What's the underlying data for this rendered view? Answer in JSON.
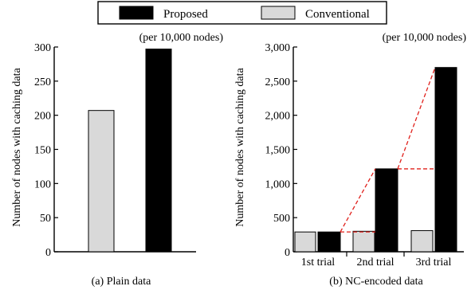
{
  "legend": {
    "items": [
      {
        "label": "Proposed",
        "color": "#000000"
      },
      {
        "label": "Conventional",
        "color": "#d9d9d9"
      }
    ]
  },
  "chart_data": [
    {
      "type": "bar",
      "title": "(a) Plain data",
      "subtitle": "(per 10,000 nodes)",
      "ylabel": "Number of nodes with caching data",
      "xlabel": "",
      "ylim": [
        0,
        300
      ],
      "yticks": [
        0,
        50,
        100,
        150,
        200,
        250,
        300
      ],
      "ytick_labels": [
        "0",
        "50",
        "100",
        "150",
        "200",
        "250",
        "300"
      ],
      "categories": [
        ""
      ],
      "series": [
        {
          "name": "Conventional",
          "color": "#d9d9d9",
          "values": [
            207
          ]
        },
        {
          "name": "Proposed",
          "color": "#000000",
          "values": [
            297
          ]
        }
      ],
      "grid": false
    },
    {
      "type": "bar",
      "title": "(b) NC-encoded data",
      "subtitle": "(per 10,000 nodes)",
      "ylabel": "Number of nodes with caching data",
      "xlabel": "",
      "ylim": [
        0,
        3000
      ],
      "yticks": [
        0,
        500,
        1000,
        1500,
        2000,
        2500,
        3000
      ],
      "ytick_labels": [
        "0",
        "500",
        "1,000",
        "1,500",
        "2,000",
        "2,500",
        "3,000"
      ],
      "categories": [
        "1st trial",
        "2nd trial",
        "3rd trial"
      ],
      "series": [
        {
          "name": "Conventional",
          "color": "#d9d9d9",
          "values": [
            290,
            300,
            310
          ]
        },
        {
          "name": "Proposed",
          "color": "#000000",
          "values": [
            290,
            1215,
            2700
          ]
        }
      ],
      "annotations": "red dashed lines linking the top of each Proposed bar to the next trial's Proposed bar",
      "annotation_color": "#e0201b",
      "grid": false
    }
  ]
}
